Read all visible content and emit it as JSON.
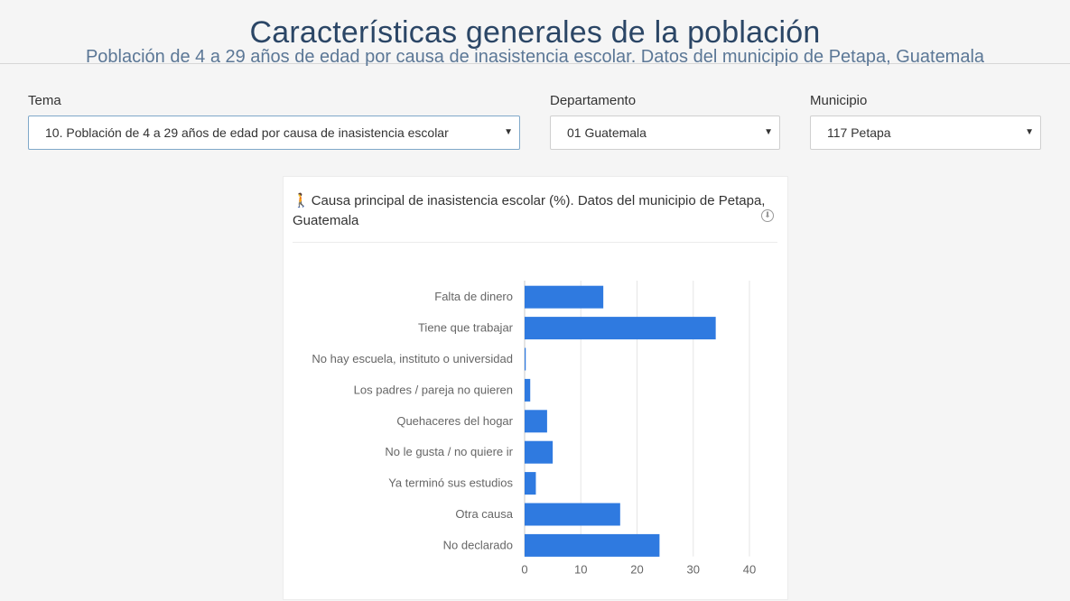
{
  "header": {
    "title": "Características generales de la población",
    "subtitle": "Población de 4 a 29 años de edad por causa de inasistencia escolar. Datos del municipio de Petapa, Guatemala"
  },
  "filters": {
    "tema": {
      "label": "Tema",
      "value": "10. Población de 4 a 29 años de edad por causa de inasistencia escolar"
    },
    "departamento": {
      "label": "Departamento",
      "value": "01 Guatemala"
    },
    "municipio": {
      "label": "Municipio",
      "value": "117 Petapa"
    }
  },
  "panel": {
    "title": "Causa principal de inasistencia escolar (%). Datos del municipio de Petapa, Guatemala",
    "icon": "walking-person-icon",
    "action_icon": "download-icon"
  },
  "chart_data": {
    "type": "bar",
    "orientation": "horizontal",
    "title": "Causa principal de inasistencia escolar (%). Datos del municipio de Petapa, Guatemala",
    "xlabel": "",
    "ylabel": "",
    "categories": [
      "Falta de dinero",
      "Tiene que trabajar",
      "No hay escuela, instituto o universidad",
      "Los padres / pareja no quieren",
      "Quehaceres del hogar",
      "No le gusta / no quiere ir",
      "Ya terminó sus estudios",
      "Otra causa",
      "No declarado"
    ],
    "values": [
      14,
      34,
      0.2,
      1,
      4,
      5,
      2,
      17,
      24
    ],
    "xlim": [
      0,
      40
    ],
    "ticks": [
      "0",
      "10",
      "20",
      "30",
      "40"
    ],
    "grid": true,
    "legend": "none",
    "bar_color": "#2f7ae0"
  }
}
